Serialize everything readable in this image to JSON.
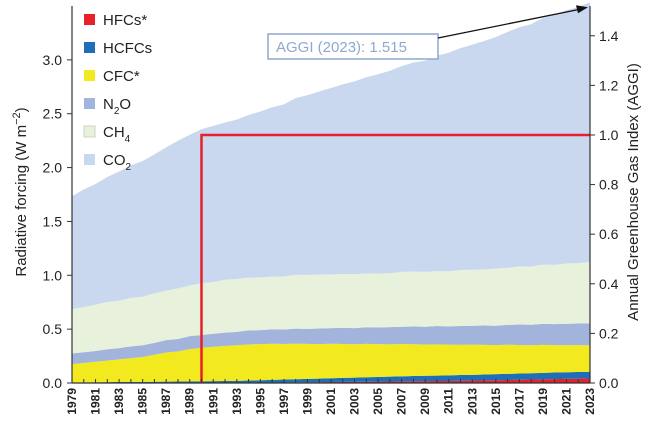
{
  "chart_data": {
    "type": "area",
    "stacked": true,
    "x": [
      1979,
      1980,
      1981,
      1982,
      1983,
      1984,
      1985,
      1986,
      1987,
      1988,
      1989,
      1990,
      1991,
      1992,
      1993,
      1994,
      1995,
      1996,
      1997,
      1998,
      1999,
      2000,
      2001,
      2002,
      2003,
      2004,
      2005,
      2006,
      2007,
      2008,
      2009,
      2010,
      2011,
      2012,
      2013,
      2014,
      2015,
      2016,
      2017,
      2018,
      2019,
      2020,
      2021,
      2022,
      2023
    ],
    "xticks": [
      "1979",
      "1981",
      "1983",
      "1985",
      "1987",
      "1989",
      "1991",
      "1993",
      "1995",
      "1997",
      "1999",
      "2001",
      "2003",
      "2005",
      "2007",
      "2009",
      "2011",
      "2013",
      "2015",
      "2017",
      "2019",
      "2021",
      "2023"
    ],
    "ylabel": "Radiative forcing (W m⁻²)",
    "ylabel_main": "Radiative forcing (W m",
    "ylabel_sup": "−2",
    "ylabel_end": ")",
    "ylim": [
      0,
      3.5
    ],
    "yticks": [
      "0.0",
      "0.5",
      "1.0",
      "1.5",
      "2.0",
      "2.5",
      "3.0"
    ],
    "ytick_values": [
      0,
      0.5,
      1.0,
      1.5,
      2.0,
      2.5,
      3.0
    ],
    "y2label": "Annual Greenhouse Gas Index (AGGI)",
    "y2lim": [
      0,
      1.52
    ],
    "y2ticks": [
      "0.0",
      "0.2",
      "0.4",
      "0.6",
      "0.8",
      "1.0",
      "1.2",
      "1.4"
    ],
    "y2tick_values": [
      0,
      0.2,
      0.4,
      0.6,
      0.8,
      1.0,
      1.2,
      1.4
    ],
    "series": [
      {
        "name": "HFCs*",
        "color": "#e8202a",
        "values": [
          0.0,
          0.0,
          0.0,
          0.0,
          0.0,
          0.0,
          0.0,
          0.0,
          0.0,
          0.0,
          0.0,
          0.0,
          0.0,
          0.0,
          0.001,
          0.002,
          0.003,
          0.004,
          0.005,
          0.006,
          0.007,
          0.008,
          0.009,
          0.01,
          0.011,
          0.012,
          0.013,
          0.014,
          0.015,
          0.016,
          0.017,
          0.018,
          0.019,
          0.021,
          0.022,
          0.024,
          0.026,
          0.028,
          0.03,
          0.032,
          0.034,
          0.036,
          0.038,
          0.04,
          0.042
        ]
      },
      {
        "name": "HCFCs",
        "color": "#1e6fb8",
        "values": [
          0.005,
          0.006,
          0.007,
          0.008,
          0.009,
          0.01,
          0.011,
          0.012,
          0.013,
          0.014,
          0.015,
          0.016,
          0.017,
          0.018,
          0.019,
          0.021,
          0.023,
          0.025,
          0.027,
          0.029,
          0.031,
          0.033,
          0.035,
          0.037,
          0.039,
          0.041,
          0.043,
          0.045,
          0.047,
          0.049,
          0.05,
          0.051,
          0.052,
          0.053,
          0.054,
          0.055,
          0.056,
          0.057,
          0.058,
          0.059,
          0.06,
          0.061,
          0.062,
          0.062,
          0.063
        ]
      },
      {
        "name": "CFC*",
        "color": "#f2ea1e",
        "values": [
          0.17,
          0.18,
          0.19,
          0.2,
          0.21,
          0.22,
          0.23,
          0.25,
          0.27,
          0.28,
          0.3,
          0.31,
          0.32,
          0.325,
          0.33,
          0.335,
          0.335,
          0.335,
          0.33,
          0.33,
          0.325,
          0.32,
          0.32,
          0.315,
          0.31,
          0.31,
          0.305,
          0.3,
          0.3,
          0.295,
          0.29,
          0.29,
          0.285,
          0.28,
          0.28,
          0.275,
          0.27,
          0.27,
          0.265,
          0.26,
          0.26,
          0.255,
          0.25,
          0.25,
          0.245
        ]
      },
      {
        "name": "N₂O",
        "name_main": "N",
        "name_sub": "2",
        "name_end": "O",
        "color": "#a3b4dc",
        "values": [
          0.1,
          0.1,
          0.1,
          0.105,
          0.105,
          0.11,
          0.11,
          0.11,
          0.115,
          0.115,
          0.12,
          0.12,
          0.12,
          0.125,
          0.125,
          0.13,
          0.13,
          0.135,
          0.135,
          0.14,
          0.14,
          0.145,
          0.145,
          0.15,
          0.15,
          0.155,
          0.155,
          0.16,
          0.16,
          0.165,
          0.165,
          0.17,
          0.17,
          0.175,
          0.175,
          0.18,
          0.18,
          0.185,
          0.19,
          0.19,
          0.195,
          0.195,
          0.2,
          0.2,
          0.205
        ]
      },
      {
        "name": "CH₄",
        "name_main": "CH",
        "name_sub": "4",
        "name_end": "",
        "color": "#e7f1dc",
        "values": [
          0.41,
          0.42,
          0.43,
          0.44,
          0.44,
          0.45,
          0.45,
          0.46,
          0.46,
          0.47,
          0.47,
          0.48,
          0.48,
          0.49,
          0.49,
          0.49,
          0.49,
          0.49,
          0.49,
          0.5,
          0.5,
          0.5,
          0.5,
          0.5,
          0.5,
          0.5,
          0.5,
          0.5,
          0.51,
          0.51,
          0.51,
          0.51,
          0.51,
          0.52,
          0.52,
          0.52,
          0.53,
          0.53,
          0.54,
          0.54,
          0.55,
          0.55,
          0.56,
          0.56,
          0.57
        ]
      },
      {
        "name": "CO₂",
        "name_main": "CO",
        "name_sub": "2",
        "name_end": "",
        "color": "#c9d8ee",
        "values": [
          1.05,
          1.09,
          1.12,
          1.16,
          1.2,
          1.23,
          1.26,
          1.29,
          1.33,
          1.37,
          1.4,
          1.43,
          1.45,
          1.46,
          1.48,
          1.51,
          1.54,
          1.57,
          1.6,
          1.64,
          1.67,
          1.7,
          1.73,
          1.76,
          1.79,
          1.82,
          1.85,
          1.88,
          1.91,
          1.94,
          1.96,
          2.0,
          2.03,
          2.06,
          2.09,
          2.12,
          2.15,
          2.19,
          2.22,
          2.25,
          2.29,
          2.32,
          2.35,
          2.38,
          2.41
        ]
      }
    ],
    "reference": {
      "year": 1990,
      "aggi": 1.0,
      "color": "#e8202a"
    },
    "annotation": {
      "text": "AGGI (2023): 1.515",
      "year": 2023,
      "aggi": 1.515
    },
    "legend": "top-left"
  }
}
